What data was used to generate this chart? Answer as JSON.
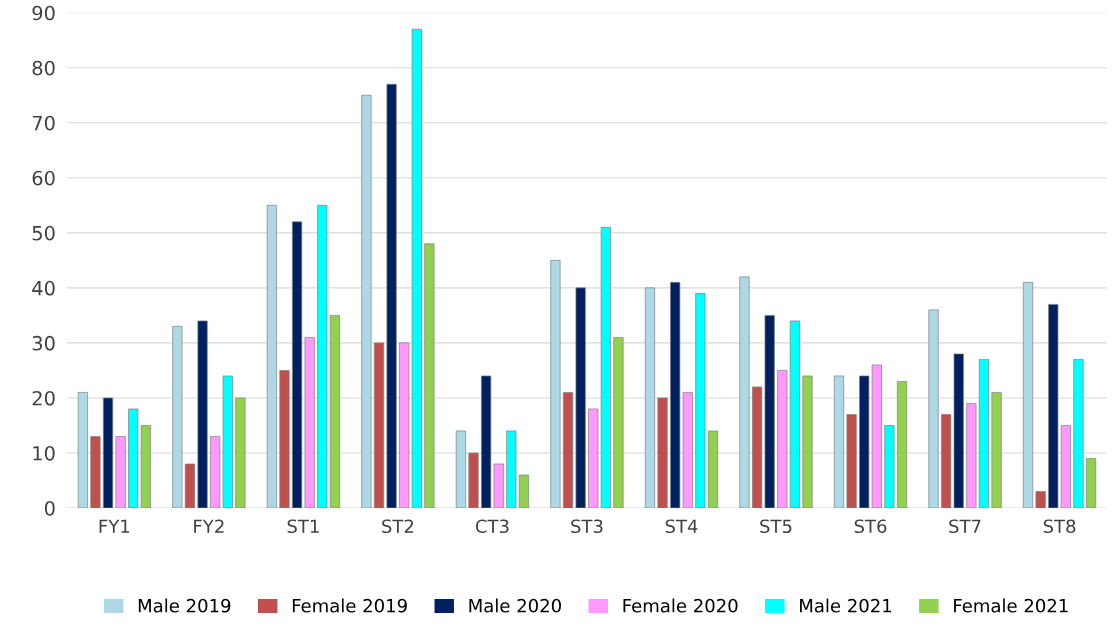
{
  "chart_data": {
    "type": "bar",
    "categories": [
      "FY1",
      "FY2",
      "ST1",
      "ST2",
      "CT3",
      "ST3",
      "ST4",
      "ST5",
      "ST6",
      "ST7",
      "ST8"
    ],
    "series": [
      {
        "name": "Male 2019",
        "color": "#add8e6",
        "values": [
          21,
          33,
          55,
          75,
          14,
          45,
          40,
          42,
          24,
          36,
          41
        ]
      },
      {
        "name": "Female 2019",
        "color": "#c0504d",
        "values": [
          13,
          8,
          25,
          30,
          10,
          21,
          20,
          22,
          17,
          17,
          3
        ]
      },
      {
        "name": "Male 2020",
        "color": "#002060",
        "values": [
          20,
          34,
          52,
          77,
          24,
          40,
          41,
          35,
          24,
          28,
          37
        ]
      },
      {
        "name": "Female 2020",
        "color": "#ff99ff",
        "values": [
          13,
          13,
          31,
          30,
          8,
          18,
          21,
          25,
          26,
          19,
          15
        ]
      },
      {
        "name": "Male 2021",
        "color": "#00ffff",
        "values": [
          18,
          24,
          55,
          87,
          14,
          51,
          39,
          34,
          15,
          27,
          27
        ]
      },
      {
        "name": "Female 2021",
        "color": "#92d050",
        "values": [
          15,
          20,
          35,
          48,
          6,
          31,
          14,
          24,
          23,
          21,
          9
        ]
      }
    ],
    "ylim": [
      0,
      90
    ],
    "yticks": [
      0,
      10,
      20,
      30,
      40,
      50,
      60,
      70,
      80,
      90
    ],
    "grid": "y",
    "legend": "bottom"
  }
}
